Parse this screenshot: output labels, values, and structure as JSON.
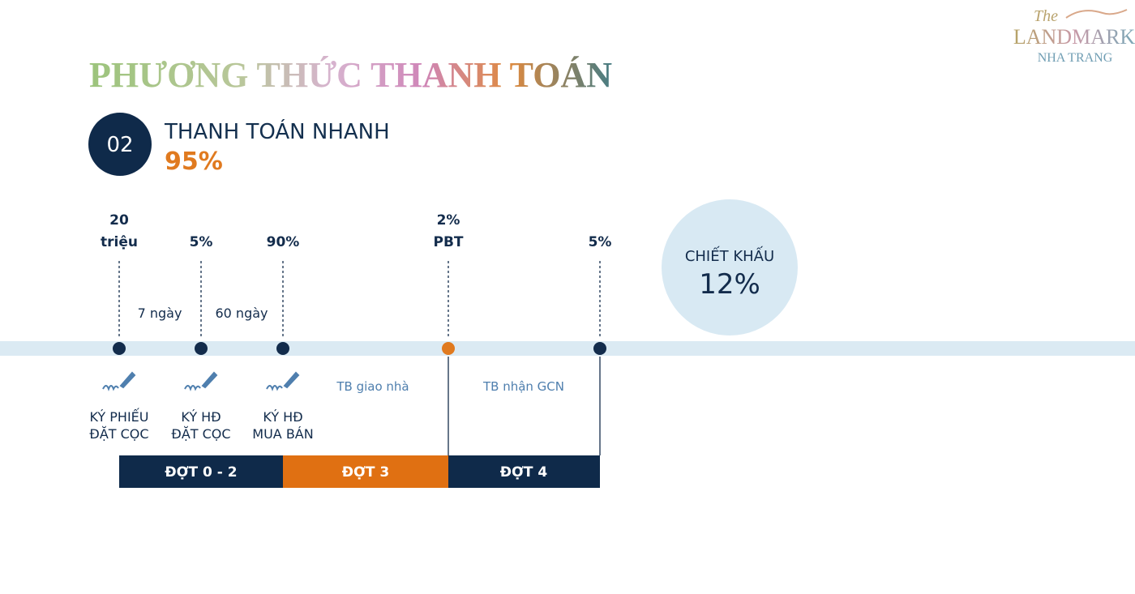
{
  "logo": {
    "script": "The",
    "name": "LANDMARK",
    "place": "NHA TRANG"
  },
  "title": "PHƯƠNG THỨC THANH TOÁN",
  "plan": {
    "number": "02",
    "name": "THANH TOÁN NHANH",
    "share": "95%"
  },
  "milestones": [
    {
      "top": [
        "20",
        "triệu"
      ],
      "bottom": [
        "KÝ PHIẾU",
        "ĐẶT CỌC"
      ]
    },
    {
      "top": [
        "5%"
      ],
      "bottom": [
        "KÝ HĐ",
        "ĐẶT CỌC"
      ]
    },
    {
      "top": [
        "90%"
      ],
      "bottom": [
        "KÝ HĐ",
        "MUA BÁN"
      ]
    },
    {
      "top": [
        "2%",
        "PBT"
      ]
    },
    {
      "top": [
        "5%"
      ]
    }
  ],
  "intervals": [
    "7 ngày",
    "60 ngày"
  ],
  "notices": [
    "TB giao nhà",
    "TB nhận GCN"
  ],
  "phases": [
    "ĐỢT 0 - 2",
    "ĐỢT 3",
    "ĐỢT 4"
  ],
  "discount": {
    "label": "CHIẾT KHẤU",
    "value": "12%"
  }
}
